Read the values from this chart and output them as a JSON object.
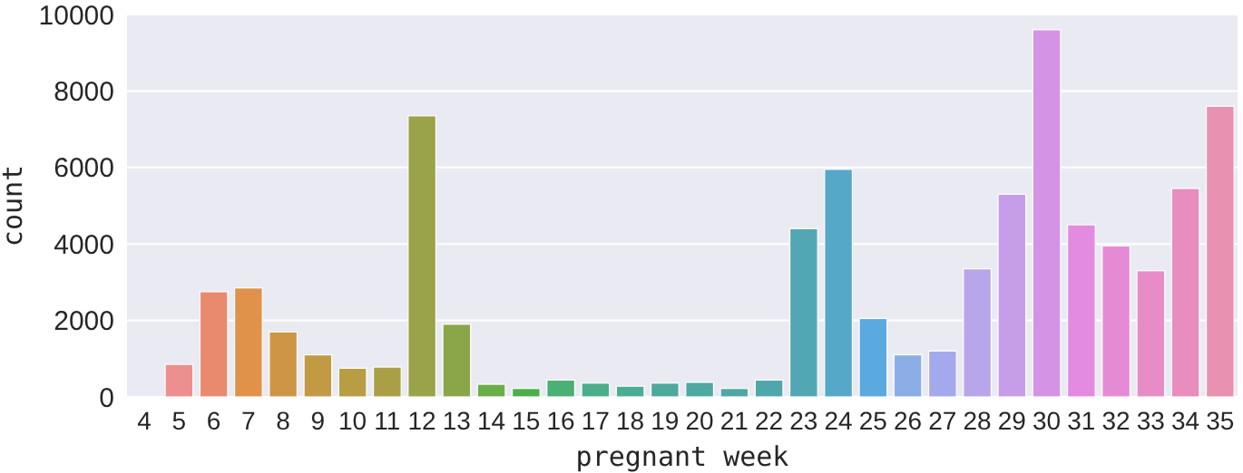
{
  "chart_data": {
    "type": "bar",
    "xlabel": "pregnant week",
    "ylabel": "count",
    "categories": [
      "4",
      "5",
      "6",
      "7",
      "8",
      "9",
      "10",
      "11",
      "12",
      "13",
      "14",
      "15",
      "16",
      "17",
      "18",
      "19",
      "20",
      "21",
      "22",
      "23",
      "24",
      "25",
      "26",
      "27",
      "28",
      "29",
      "30",
      "31",
      "32",
      "33",
      "34",
      "35"
    ],
    "values": [
      null,
      850,
      2750,
      2850,
      1700,
      1100,
      750,
      780,
      7350,
      1900,
      330,
      220,
      440,
      360,
      280,
      360,
      380,
      220,
      440,
      4400,
      5950,
      2050,
      1100,
      1200,
      3350,
      5300,
      9600,
      4500,
      3950,
      3300,
      5450,
      7600
    ],
    "colors": [
      null,
      "#ee8f8f",
      "#e98a6e",
      "#e0924a",
      "#ce9545",
      "#c29a45",
      "#b89d45",
      "#ab9f45",
      "#9ba34a",
      "#8aa648",
      "#6aad49",
      "#4bb049",
      "#4bb073",
      "#4aae8a",
      "#4bad94",
      "#4caa9c",
      "#4ea9a1",
      "#4fa8a6",
      "#50a7ab",
      "#52a7b5",
      "#55a8c8",
      "#5aaadf",
      "#8baee6",
      "#a4a9ec",
      "#b8a5ea",
      "#c69de8",
      "#d493e4",
      "#e38ae1",
      "#e78ad6",
      "#e88cc8",
      "#e88dbd",
      "#e891b0"
    ],
    "ylim": [
      0,
      10000
    ],
    "yticks": [
      0,
      2000,
      4000,
      6000,
      8000,
      10000
    ],
    "grid": "y"
  }
}
